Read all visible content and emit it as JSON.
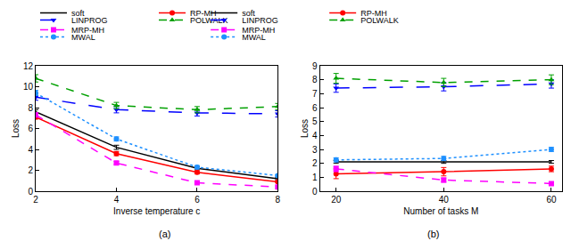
{
  "chart_data": [
    {
      "type": "line",
      "x_label": "Inverse temperature c",
      "y_label": "Loss",
      "annotation": "(a)",
      "x": [
        2,
        4,
        6,
        8
      ],
      "xlim": [
        2,
        8
      ],
      "xticks": [
        2,
        4,
        6,
        8
      ],
      "ylim": [
        0,
        12
      ],
      "yticks": [
        0,
        2,
        4,
        6,
        8,
        10,
        12
      ],
      "legend": "top",
      "series": [
        {
          "name": "soft",
          "color": "#000000",
          "marker": "none",
          "line_style": "solid",
          "values": [
            7.6,
            4.2,
            2.2,
            1.2
          ],
          "errors": [
            0.2,
            0.2,
            0.15,
            0.1
          ]
        },
        {
          "name": "RP-MH",
          "color": "#ff0000",
          "marker": "circle",
          "line_style": "solid",
          "values": [
            7.1,
            3.6,
            1.8,
            0.9
          ],
          "errors": [
            0.2,
            0.2,
            0.15,
            0.1
          ]
        },
        {
          "name": "MRP-MH",
          "color": "#ff00ff",
          "marker": "square",
          "line_style": "dash",
          "values": [
            7.3,
            2.7,
            0.8,
            0.4
          ],
          "errors": [
            0.2,
            0.15,
            0.1,
            0.1
          ]
        },
        {
          "name": "LINPROG",
          "color": "#0000ff",
          "marker": "triangle-down",
          "line_style": "longdash",
          "values": [
            9.0,
            7.8,
            7.5,
            7.4
          ],
          "errors": [
            0.3,
            0.3,
            0.3,
            0.3
          ]
        },
        {
          "name": "POLWALK",
          "color": "#00a000",
          "marker": "triangle-up",
          "line_style": "dash",
          "values": [
            10.8,
            8.2,
            7.8,
            8.1
          ],
          "errors": [
            0.35,
            0.3,
            0.3,
            0.3
          ]
        },
        {
          "name": "MWAL",
          "color": "#1e90ff",
          "marker": "circle",
          "line_style": "dot",
          "values": [
            9.4,
            5.0,
            2.3,
            1.5
          ],
          "errors": [
            0.25,
            0.2,
            0.15,
            0.1
          ]
        }
      ]
    },
    {
      "type": "line",
      "x_label": "Number of tasks M",
      "y_label": "Loss",
      "annotation": "(b)",
      "x": [
        20,
        40,
        60
      ],
      "xlim": [
        17,
        62
      ],
      "xticks": [
        20,
        40,
        60
      ],
      "ylim": [
        0,
        9
      ],
      "yticks": [
        0,
        1,
        2,
        3,
        4,
        5,
        6,
        7,
        8,
        9
      ],
      "legend": "top",
      "series": [
        {
          "name": "soft",
          "color": "#000000",
          "marker": "none",
          "line_style": "solid",
          "values": [
            2.1,
            2.1,
            2.1
          ],
          "errors": [
            0.1,
            0.1,
            0.1
          ]
        },
        {
          "name": "RP-MH",
          "color": "#ff0000",
          "marker": "circle",
          "line_style": "solid",
          "values": [
            1.25,
            1.4,
            1.6
          ],
          "errors": [
            0.35,
            0.3,
            0.2
          ]
        },
        {
          "name": "MRP-MH",
          "color": "#ff00ff",
          "marker": "square",
          "line_style": "dash",
          "values": [
            1.6,
            0.8,
            0.55
          ],
          "errors": [
            0.2,
            0.15,
            0.1
          ]
        },
        {
          "name": "LINPROG",
          "color": "#0000ff",
          "marker": "triangle-down",
          "line_style": "longdash",
          "values": [
            7.4,
            7.5,
            7.7
          ],
          "errors": [
            0.3,
            0.3,
            0.3
          ]
        },
        {
          "name": "POLWALK",
          "color": "#00a000",
          "marker": "triangle-up",
          "line_style": "dash",
          "values": [
            8.1,
            7.8,
            8.0
          ],
          "errors": [
            0.35,
            0.3,
            0.35
          ]
        },
        {
          "name": "MWAL",
          "color": "#1e90ff",
          "marker": "circle",
          "line_style": "dot",
          "values": [
            2.25,
            2.35,
            3.0
          ],
          "errors": [
            0.15,
            0.15,
            0.15
          ]
        }
      ]
    }
  ]
}
